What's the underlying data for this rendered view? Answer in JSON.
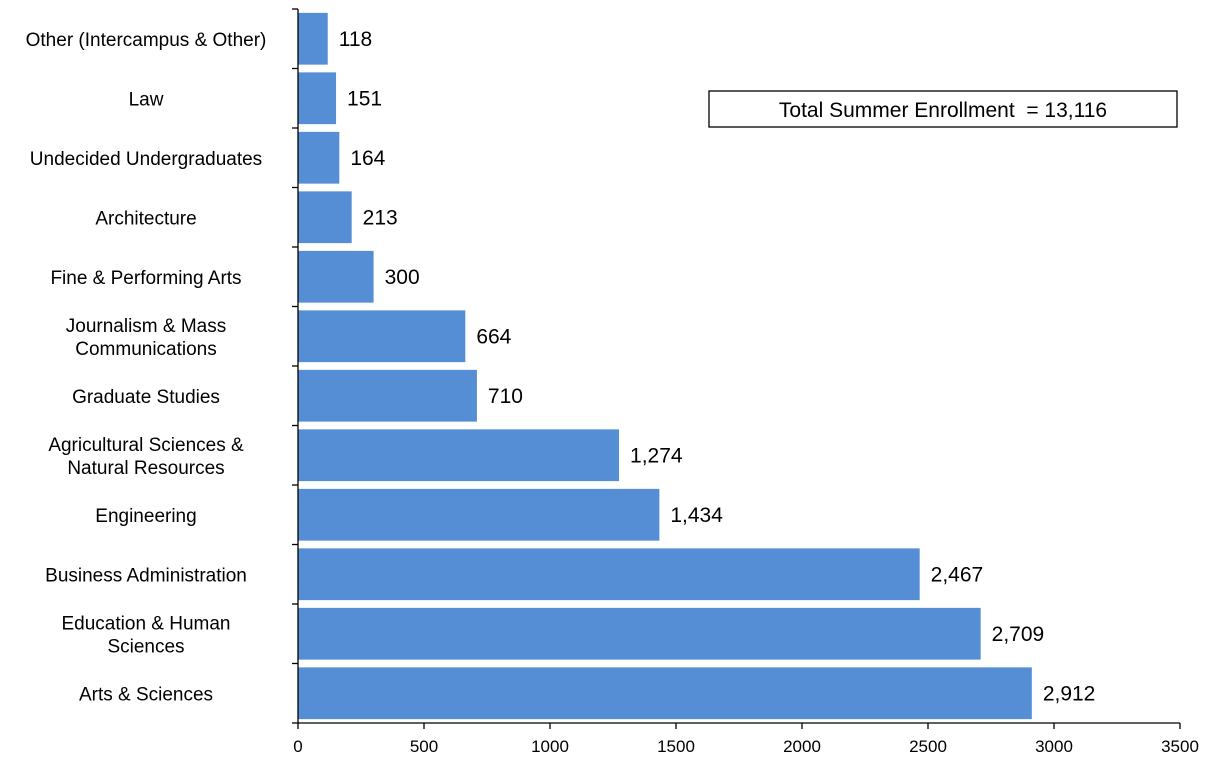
{
  "chart_data": {
    "type": "bar",
    "orientation": "horizontal",
    "categories": [
      "Other (Intercampus & Other)",
      "Law",
      "Undecided Undergraduates",
      "Architecture",
      "Fine & Performing Arts",
      "Journalism & Mass Communications",
      "Graduate Studies",
      "Agricultural Sciences & Natural Resources",
      "Engineering",
      "Business Administration",
      "Education & Human Sciences",
      "Arts & Sciences"
    ],
    "category_lines": [
      [
        "Other (Intercampus & Other)"
      ],
      [
        "Law"
      ],
      [
        "Undecided Undergraduates"
      ],
      [
        "Architecture"
      ],
      [
        "Fine & Performing Arts"
      ],
      [
        "Journalism & Mass",
        "Communications"
      ],
      [
        "Graduate Studies"
      ],
      [
        "Agricultural Sciences &",
        "Natural Resources"
      ],
      [
        "Engineering"
      ],
      [
        "Business Administration"
      ],
      [
        "Education & Human",
        "Sciences"
      ],
      [
        "Arts & Sciences"
      ]
    ],
    "values": [
      118,
      151,
      164,
      213,
      300,
      664,
      710,
      1274,
      1434,
      2467,
      2709,
      2912
    ],
    "value_labels": [
      "118",
      "151",
      "164",
      "213",
      "300",
      "664",
      "710",
      "1,274",
      "1,434",
      "2,467",
      "2,709",
      "2,912"
    ],
    "xlim": [
      0,
      3500
    ],
    "x_ticks": [
      0,
      500,
      1000,
      1500,
      2000,
      2500,
      3000,
      3500
    ],
    "x_tick_labels": [
      "0",
      "500",
      "1000",
      "1500",
      "2000",
      "2500",
      "3000",
      "3500"
    ],
    "title": "",
    "xlabel": "",
    "ylabel": "",
    "grid": false,
    "bar_color": "#558ED5",
    "annotation": {
      "text": "Total Summer Enrollment  = 13,116",
      "placement": "top-right"
    }
  }
}
